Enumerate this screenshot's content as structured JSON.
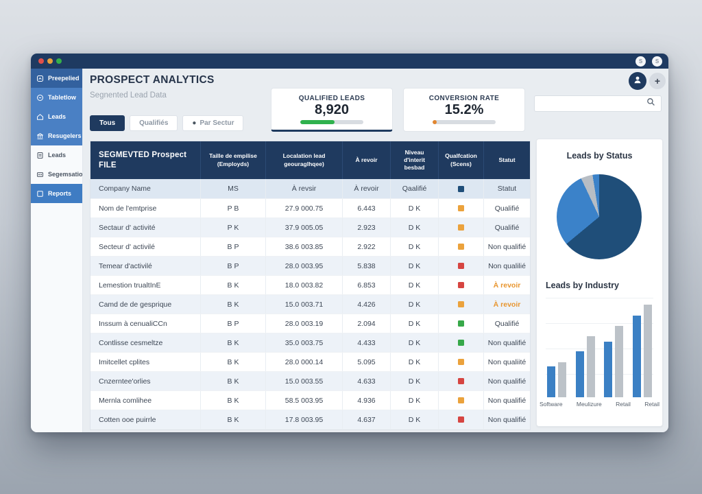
{
  "window": {
    "traffic_lights": [
      {
        "name": "close",
        "color": "#e0504a"
      },
      {
        "name": "minimize",
        "color": "#e6a13c"
      },
      {
        "name": "zoom",
        "color": "#35b04a"
      }
    ],
    "titlebar_badges": [
      "S",
      "S"
    ]
  },
  "sidebar": {
    "items": [
      {
        "label": "Preepelied",
        "icon": "dashboard-icon",
        "section": "blue",
        "active": true
      },
      {
        "label": "Tabletlow",
        "icon": "table-icon",
        "section": "blue",
        "active": false
      },
      {
        "label": "Leads",
        "icon": "home-icon",
        "section": "blue",
        "active": false
      },
      {
        "label": "Resugelers",
        "icon": "bank-icon",
        "section": "blue",
        "active": false
      },
      {
        "label": "Leads",
        "icon": "document-icon",
        "section": "light",
        "active": false
      },
      {
        "label": "Segemsation",
        "icon": "segmentation-icon",
        "section": "light",
        "active": false
      },
      {
        "label": "Reports",
        "icon": "reports-icon",
        "section": "highlight",
        "active": false
      }
    ]
  },
  "header": {
    "title": "PROSPECT ANALYTICS",
    "subtitle": "Segnented Lead Data",
    "filters": [
      {
        "label": "Tous",
        "active": true,
        "bullet": false
      },
      {
        "label": "Qualifiés",
        "active": false,
        "bullet": false
      },
      {
        "label": "Par Sectur",
        "active": false,
        "bullet": true
      }
    ]
  },
  "toolbar": {
    "search_value": ""
  },
  "kpis": [
    {
      "label": "QUALIFIED LEADS",
      "value": "8,920",
      "progress_pct": 54,
      "bar_color": "#2fb14d",
      "accent_bottom": true
    },
    {
      "label": "CONVERSION RATE",
      "value": "15.2%",
      "progress_pct": 6,
      "bar_color": "#e2862f",
      "accent_bottom": false
    }
  ],
  "table": {
    "title": "SEGMEVTED Prospect FILE",
    "columns": [
      "Taille de empilise (Employds)",
      "Localation lead geouraglhqee)",
      "À revoir",
      "Niveau d'interit besbad",
      "Qualfcation (Scens)",
      "Statut"
    ],
    "subheader": {
      "name": "Company Name",
      "size": "MS",
      "location": "À revsir",
      "revoir": "À revoir",
      "niveau": "Qaalifié",
      "square_color": "#1f4e79",
      "statut": "Statut",
      "statut_style": "dark"
    },
    "rows": [
      {
        "name": "Nom de l'emtprise",
        "size": "P B",
        "location": "27.9 000.75",
        "revoir": "6.443",
        "niveau": "D K",
        "square_color": "#eba23c",
        "statut": "Qualifié",
        "statut_style": "dark"
      },
      {
        "name": "Sectaur d' activité",
        "size": "P K",
        "location": "37.9 005.05",
        "revoir": "2.923",
        "niveau": "D K",
        "square_color": "#eba23c",
        "statut": "Qualifié",
        "statut_style": "dark"
      },
      {
        "name": "Secteur d' activilé",
        "size": "B P",
        "location": "38.6 003.85",
        "revoir": "2.922",
        "niveau": "D K",
        "square_color": "#eba23c",
        "statut": "Non qualifié",
        "statut_style": "dark"
      },
      {
        "name": "Temear d'activilé",
        "size": "B P",
        "location": "28.0 003.95",
        "revoir": "5.838",
        "niveau": "D K",
        "square_color": "#d64541",
        "statut": "Non qualilié",
        "statut_style": "dark"
      },
      {
        "name": "Lemestion trualtInE",
        "size": "B K",
        "location": "18.0 003.82",
        "revoir": "6.853",
        "niveau": "D K",
        "square_color": "#d64541",
        "statut": "À revoir",
        "statut_style": "orange"
      },
      {
        "name": "Camd de de gesprique",
        "size": "B K",
        "location": "15.0 003.71",
        "revoir": "4.426",
        "niveau": "D K",
        "square_color": "#eba23c",
        "statut": "À revoir",
        "statut_style": "orange"
      },
      {
        "name": "Inssum à cenualiCCn",
        "size": "B P",
        "location": "28.0 003.19",
        "revoir": "2.094",
        "niveau": "D K",
        "square_color": "#37a849",
        "statut": "Qualifié",
        "statut_style": "dark"
      },
      {
        "name": "Contlisse cesmeltze",
        "size": "B K",
        "location": "35.0 003.75",
        "revoir": "4.433",
        "niveau": "D K",
        "square_color": "#37a849",
        "statut": "Non qualifié",
        "statut_style": "dark"
      },
      {
        "name": "Imitcellet cplites",
        "size": "B K",
        "location": "28.0 000.14",
        "revoir": "5.095",
        "niveau": "D K",
        "square_color": "#eba23c",
        "statut": "Non qualiité",
        "statut_style": "dark"
      },
      {
        "name": "Cnzerntee'orlies",
        "size": "B K",
        "location": "15.0 003.55",
        "revoir": "4.633",
        "niveau": "D K",
        "square_color": "#d64541",
        "statut": "Non qualifié",
        "statut_style": "dark"
      },
      {
        "name": "Mernla comlihee",
        "size": "B K",
        "location": "58.5 003.95",
        "revoir": "4.936",
        "niveau": "D K",
        "square_color": "#eba23c",
        "statut": "Non qualifié",
        "statut_style": "dark"
      },
      {
        "name": "Cotten ooe puirrle",
        "size": "B K",
        "location": "17.8 003.95",
        "revoir": "4.637",
        "niveau": "D K",
        "square_color": "#d64541",
        "statut": "Non qualifié",
        "statut_style": "dark"
      }
    ]
  },
  "chart_data": [
    {
      "type": "pie",
      "title": "Leads by Status",
      "legend": "none",
      "slices": [
        {
          "label": "primary-status",
          "value": 64,
          "color": "#1f4e79"
        },
        {
          "label": "secondary-status",
          "value": 29,
          "color": "#3b82c9"
        },
        {
          "label": "gray-status",
          "value": 4.5,
          "color": "#b7bdc4"
        },
        {
          "label": "sliver-status",
          "value": 2.5,
          "color": "#3b82c9"
        }
      ]
    },
    {
      "type": "bar",
      "title": "Leads by Industry",
      "categories": [
        "Software",
        "Meulizure",
        "Retail",
        "Retail"
      ],
      "series": [
        {
          "name": "leads",
          "color": "#3b80c4",
          "values": [
            33,
            50,
            60,
            88
          ]
        },
        {
          "name": "total",
          "color": "#bcc2c8",
          "values": [
            38,
            66,
            77,
            100
          ]
        }
      ],
      "ylim": [
        0,
        100
      ],
      "grid": true,
      "legend": "none"
    }
  ],
  "colors": {
    "accent_navy": "#1f3a5f",
    "orange_text": "#e8952e"
  }
}
